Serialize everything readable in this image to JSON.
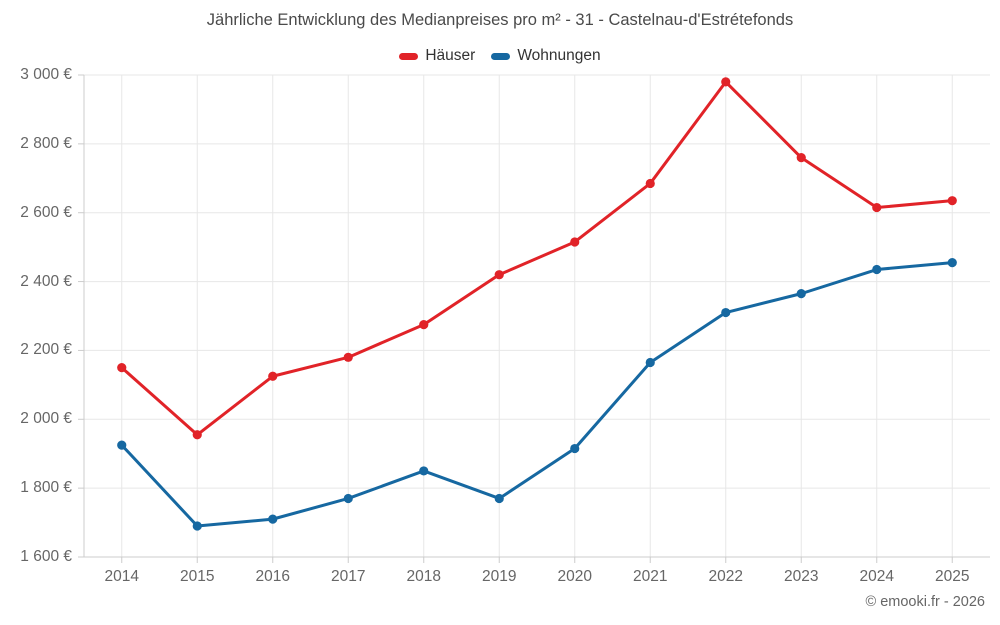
{
  "title": "Jährliche Entwicklung des Medianpreises pro m² - 31 - Castelnau-d'Estrétefonds",
  "attribution": "© emooki.fr - 2026",
  "colors": {
    "grid": "#e7e7e7",
    "axis": "#cccccc",
    "tick": "#cccccc",
    "label_text": "#666666",
    "title_text": "#4a4a4a",
    "legend_text": "#333333"
  },
  "chart_data": {
    "type": "line",
    "title": "Jährliche Entwicklung des Medianpreises pro m² - 31 - Castelnau-d'Estrétefonds",
    "categories": [
      "2014",
      "2015",
      "2016",
      "2017",
      "2018",
      "2019",
      "2020",
      "2021",
      "2022",
      "2023",
      "2024",
      "2025"
    ],
    "series": [
      {
        "name": "Häuser",
        "color": "#e12328",
        "values": [
          2150,
          1955,
          2125,
          2180,
          2275,
          2420,
          2515,
          2685,
          2980,
          2760,
          2615,
          2635
        ]
      },
      {
        "name": "Wohnungen",
        "color": "#1668a1",
        "values": [
          1925,
          1690,
          1710,
          1770,
          1850,
          1770,
          1915,
          2165,
          2310,
          2365,
          2435,
          2455
        ]
      }
    ],
    "xlabel": "",
    "ylabel": "",
    "ylim": [
      1600,
      3000
    ],
    "ytick_step": 200,
    "ytick_labels": [
      "1 600 €",
      "1 800 €",
      "2 000 €",
      "2 200 €",
      "2 400 €",
      "2 600 €",
      "2 800 €",
      "3 000 €"
    ],
    "grid": true,
    "legend_position": "top",
    "unit": "€"
  }
}
